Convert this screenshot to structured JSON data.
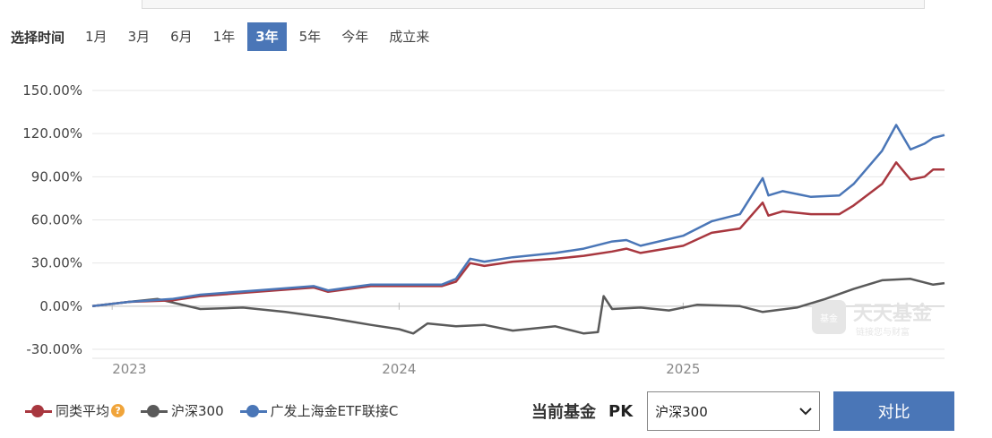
{
  "range_selector": {
    "label": "选择时间",
    "options": [
      "1月",
      "3月",
      "6月",
      "1年",
      "3年",
      "5年",
      "今年",
      "成立来"
    ],
    "active": "3年"
  },
  "watermark": {
    "brand": "天天基金",
    "slogan": "链接您与财富",
    "badge": "基金"
  },
  "chart_data": {
    "type": "line",
    "x_tick_labels": [
      "2023",
      "2024",
      "2025"
    ],
    "x_ticks": [
      2022.99,
      2024.0,
      2025.0
    ],
    "xlim": [
      2022.92,
      2025.92
    ],
    "y_tick_labels": [
      "150.00%",
      "120.00%",
      "90.00%",
      "60.00%",
      "30.00%",
      "0.00%",
      "-30.00%"
    ],
    "y_ticks": [
      150,
      120,
      90,
      60,
      30,
      0,
      -30
    ],
    "ylim": [
      -30,
      150
    ],
    "series": [
      {
        "name": "同类平均",
        "color": "#a8373f",
        "x": [
          2022.92,
          2023.05,
          2023.2,
          2023.3,
          2023.5,
          2023.7,
          2023.75,
          2023.9,
          2024.0,
          2024.15,
          2024.2,
          2024.25,
          2024.3,
          2024.4,
          2024.55,
          2024.65,
          2024.75,
          2024.8,
          2024.85,
          2025.0,
          2025.1,
          2025.2,
          2025.28,
          2025.3,
          2025.35,
          2025.45,
          2025.55,
          2025.6,
          2025.7,
          2025.75,
          2025.8,
          2025.85,
          2025.88,
          2025.92
        ],
        "values": [
          0,
          3,
          4,
          7,
          10,
          13,
          10,
          14,
          14,
          14,
          17,
          30,
          28,
          31,
          33,
          35,
          38,
          40,
          37,
          42,
          51,
          54,
          72,
          63,
          66,
          64,
          64,
          70,
          85,
          100,
          88,
          90,
          95,
          95
        ]
      },
      {
        "name": "沪深300",
        "color": "#5a5a5a",
        "x": [
          2022.92,
          2023.05,
          2023.15,
          2023.3,
          2023.45,
          2023.6,
          2023.75,
          2023.9,
          2024.0,
          2024.05,
          2024.1,
          2024.2,
          2024.3,
          2024.4,
          2024.55,
          2024.65,
          2024.7,
          2024.72,
          2024.75,
          2024.85,
          2024.95,
          2025.05,
          2025.2,
          2025.28,
          2025.4,
          2025.5,
          2025.6,
          2025.7,
          2025.8,
          2025.88,
          2025.92
        ],
        "values": [
          0,
          3,
          5,
          -2,
          -1,
          -4,
          -8,
          -13,
          -16,
          -19,
          -12,
          -14,
          -13,
          -17,
          -14,
          -19,
          -18,
          7,
          -2,
          -1,
          -3,
          1,
          0,
          -4,
          -1,
          5,
          12,
          18,
          19,
          15,
          16
        ]
      },
      {
        "name": "广发上海金ETF联接C",
        "color": "#4a76b7",
        "x": [
          2022.92,
          2023.05,
          2023.2,
          2023.3,
          2023.5,
          2023.7,
          2023.75,
          2023.9,
          2024.0,
          2024.15,
          2024.2,
          2024.25,
          2024.3,
          2024.4,
          2024.55,
          2024.65,
          2024.75,
          2024.8,
          2024.85,
          2025.0,
          2025.1,
          2025.2,
          2025.28,
          2025.3,
          2025.35,
          2025.45,
          2025.55,
          2025.6,
          2025.7,
          2025.75,
          2025.8,
          2025.85,
          2025.88,
          2025.92
        ],
        "values": [
          0,
          3,
          5,
          8,
          11,
          14,
          11,
          15,
          15,
          15,
          19,
          33,
          31,
          34,
          37,
          40,
          45,
          46,
          42,
          49,
          59,
          64,
          89,
          77,
          80,
          76,
          77,
          85,
          108,
          126,
          109,
          113,
          117,
          119
        ]
      }
    ]
  },
  "legend": {
    "items": [
      {
        "label": "同类平均",
        "color": "#a8373f",
        "help_icon": "?"
      },
      {
        "label": "沪深300",
        "color": "#5a5a5a"
      },
      {
        "label": "广发上海金ETF联接C",
        "color": "#4a76b7"
      }
    ]
  },
  "compare": {
    "current_fund_label": "当前基金",
    "pk": "PK",
    "selected_index": "沪深300",
    "button_label": "对比"
  }
}
